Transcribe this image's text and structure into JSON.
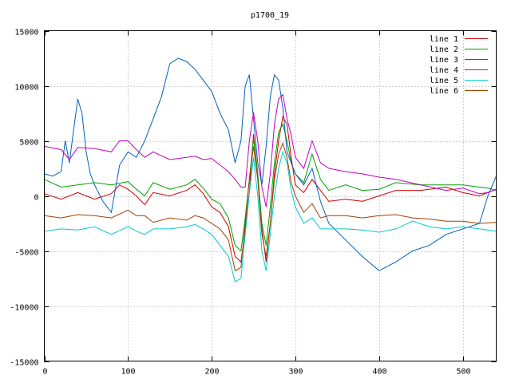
{
  "chart_data": {
    "type": "line",
    "title": "p1700_19",
    "xlabel": "",
    "ylabel": "",
    "xlim": [
      0,
      540
    ],
    "ylim": [
      -15000,
      15000
    ],
    "x_ticks": [
      0,
      100,
      200,
      300,
      400,
      500
    ],
    "y_ticks": [
      -15000,
      -10000,
      -5000,
      0,
      5000,
      10000,
      15000
    ],
    "grid": true,
    "legend_position": "top-right",
    "series": [
      {
        "name": "line 1",
        "color": "#cc0000",
        "x": [
          0,
          20,
          40,
          60,
          80,
          90,
          100,
          110,
          120,
          130,
          150,
          170,
          180,
          190,
          200,
          210,
          220,
          228,
          235,
          240,
          245,
          250,
          255,
          260,
          265,
          270,
          275,
          280,
          285,
          290,
          295,
          300,
          310,
          320,
          330,
          340,
          360,
          380,
          400,
          420,
          450,
          480,
          500,
          520,
          530,
          540
        ],
        "y": [
          200,
          -300,
          300,
          -300,
          200,
          1000,
          600,
          0,
          -800,
          300,
          0,
          500,
          1000,
          200,
          -1000,
          -1500,
          -2800,
          -5500,
          -6000,
          -3000,
          300,
          5600,
          2000,
          -3000,
          -6000,
          -2500,
          2000,
          5000,
          7200,
          6500,
          3500,
          1000,
          300,
          1500,
          500,
          -500,
          -300,
          -500,
          0,
          500,
          500,
          800,
          300,
          0,
          300,
          600
        ]
      },
      {
        "name": "line 2",
        "color": "#00a000",
        "x": [
          0,
          20,
          40,
          60,
          80,
          100,
          110,
          120,
          130,
          150,
          170,
          180,
          190,
          200,
          210,
          220,
          228,
          235,
          240,
          245,
          250,
          255,
          260,
          265,
          270,
          275,
          280,
          285,
          290,
          295,
          300,
          310,
          320,
          330,
          340,
          360,
          380,
          400,
          420,
          450,
          480,
          500,
          520,
          530,
          540
        ],
        "y": [
          1500,
          800,
          1000,
          1200,
          1000,
          1300,
          600,
          0,
          1200,
          600,
          1000,
          1500,
          700,
          -300,
          -700,
          -2000,
          -4500,
          -5000,
          -2000,
          1500,
          5200,
          2000,
          -2500,
          -4500,
          -1000,
          3000,
          5800,
          6500,
          5000,
          3000,
          2000,
          1200,
          3800,
          1500,
          500,
          1000,
          500,
          600,
          1200,
          1000,
          1000,
          1000,
          800,
          700,
          500
        ]
      },
      {
        "name": "line 3",
        "color": "#0060c0",
        "x": [
          0,
          10,
          20,
          25,
          30,
          35,
          40,
          45,
          50,
          55,
          60,
          70,
          80,
          90,
          100,
          110,
          120,
          130,
          140,
          150,
          160,
          170,
          180,
          190,
          200,
          210,
          220,
          228,
          235,
          240,
          245,
          250,
          255,
          260,
          265,
          270,
          275,
          280,
          285,
          290,
          295,
          300,
          310,
          320,
          330,
          340,
          360,
          380,
          400,
          420,
          440,
          460,
          480,
          500,
          520,
          530,
          540
        ],
        "y": [
          2000,
          1800,
          2200,
          5000,
          3000,
          6000,
          8800,
          7500,
          4000,
          2000,
          1000,
          -500,
          -1500,
          2800,
          4000,
          3500,
          5000,
          7000,
          9000,
          12000,
          12500,
          12200,
          11500,
          10500,
          9500,
          7500,
          6000,
          3000,
          5000,
          10000,
          11000,
          7000,
          3000,
          1000,
          4500,
          9000,
          11000,
          10500,
          8000,
          4000,
          3000,
          2000,
          1000,
          2500,
          -500,
          -2500,
          -4000,
          -5500,
          -6800,
          -6000,
          -5000,
          -4500,
          -3500,
          -3000,
          -2500,
          0,
          1800
        ]
      },
      {
        "name": "line 4",
        "color": "#c000c0",
        "x": [
          0,
          20,
          30,
          40,
          60,
          80,
          90,
          100,
          110,
          120,
          130,
          150,
          170,
          180,
          190,
          200,
          210,
          220,
          228,
          235,
          240,
          245,
          250,
          255,
          260,
          265,
          270,
          275,
          280,
          285,
          290,
          295,
          300,
          310,
          320,
          330,
          340,
          360,
          380,
          400,
          420,
          450,
          480,
          500,
          520,
          530,
          540
        ],
        "y": [
          4500,
          4200,
          3300,
          4400,
          4300,
          4000,
          5000,
          5000,
          4200,
          3500,
          4000,
          3300,
          3500,
          3600,
          3300,
          3400,
          2800,
          2200,
          1500,
          800,
          800,
          5000,
          7600,
          5000,
          800,
          -1000,
          2000,
          6500,
          8800,
          9200,
          7000,
          5500,
          3500,
          2500,
          5000,
          3000,
          2500,
          2200,
          2000,
          1700,
          1500,
          1000,
          500,
          700,
          200,
          300,
          600
        ]
      },
      {
        "name": "line 5",
        "color": "#00cccc",
        "x": [
          0,
          20,
          40,
          60,
          80,
          100,
          110,
          120,
          130,
          150,
          170,
          180,
          190,
          200,
          210,
          220,
          228,
          235,
          240,
          245,
          250,
          255,
          260,
          265,
          270,
          275,
          280,
          285,
          290,
          295,
          300,
          310,
          320,
          330,
          340,
          360,
          380,
          400,
          420,
          440,
          460,
          480,
          500,
          520,
          540
        ],
        "y": [
          -3200,
          -3000,
          -3100,
          -2800,
          -3500,
          -2800,
          -3200,
          -3500,
          -3000,
          -3000,
          -2800,
          -2600,
          -3000,
          -3500,
          -4500,
          -5500,
          -7800,
          -7500,
          -3500,
          200,
          3500,
          0,
          -5000,
          -6800,
          -3500,
          0,
          2500,
          4000,
          3000,
          500,
          -1000,
          -2500,
          -2000,
          -3000,
          -3000,
          -3000,
          -3100,
          -3300,
          -3000,
          -2300,
          -2800,
          -3000,
          -2800,
          -3000,
          -3200
        ]
      },
      {
        "name": "line 6",
        "color": "#a04000",
        "x": [
          0,
          20,
          40,
          60,
          80,
          100,
          110,
          120,
          130,
          150,
          170,
          180,
          190,
          200,
          210,
          220,
          228,
          235,
          240,
          245,
          250,
          255,
          260,
          265,
          270,
          275,
          280,
          285,
          290,
          295,
          300,
          310,
          320,
          330,
          340,
          360,
          380,
          400,
          420,
          440,
          460,
          480,
          500,
          520,
          540
        ],
        "y": [
          -1800,
          -2000,
          -1700,
          -1800,
          -2000,
          -1300,
          -1800,
          -1800,
          -2400,
          -2000,
          -2200,
          -1800,
          -2000,
          -2500,
          -3000,
          -4000,
          -6800,
          -6500,
          -2500,
          1500,
          4500,
          1500,
          -3500,
          -5500,
          -2500,
          1500,
          3800,
          4800,
          3500,
          1200,
          0,
          -1500,
          -700,
          -2000,
          -1800,
          -1800,
          -2000,
          -1800,
          -1700,
          -2000,
          -2100,
          -2300,
          -2300,
          -2500,
          -2400
        ]
      }
    ]
  }
}
